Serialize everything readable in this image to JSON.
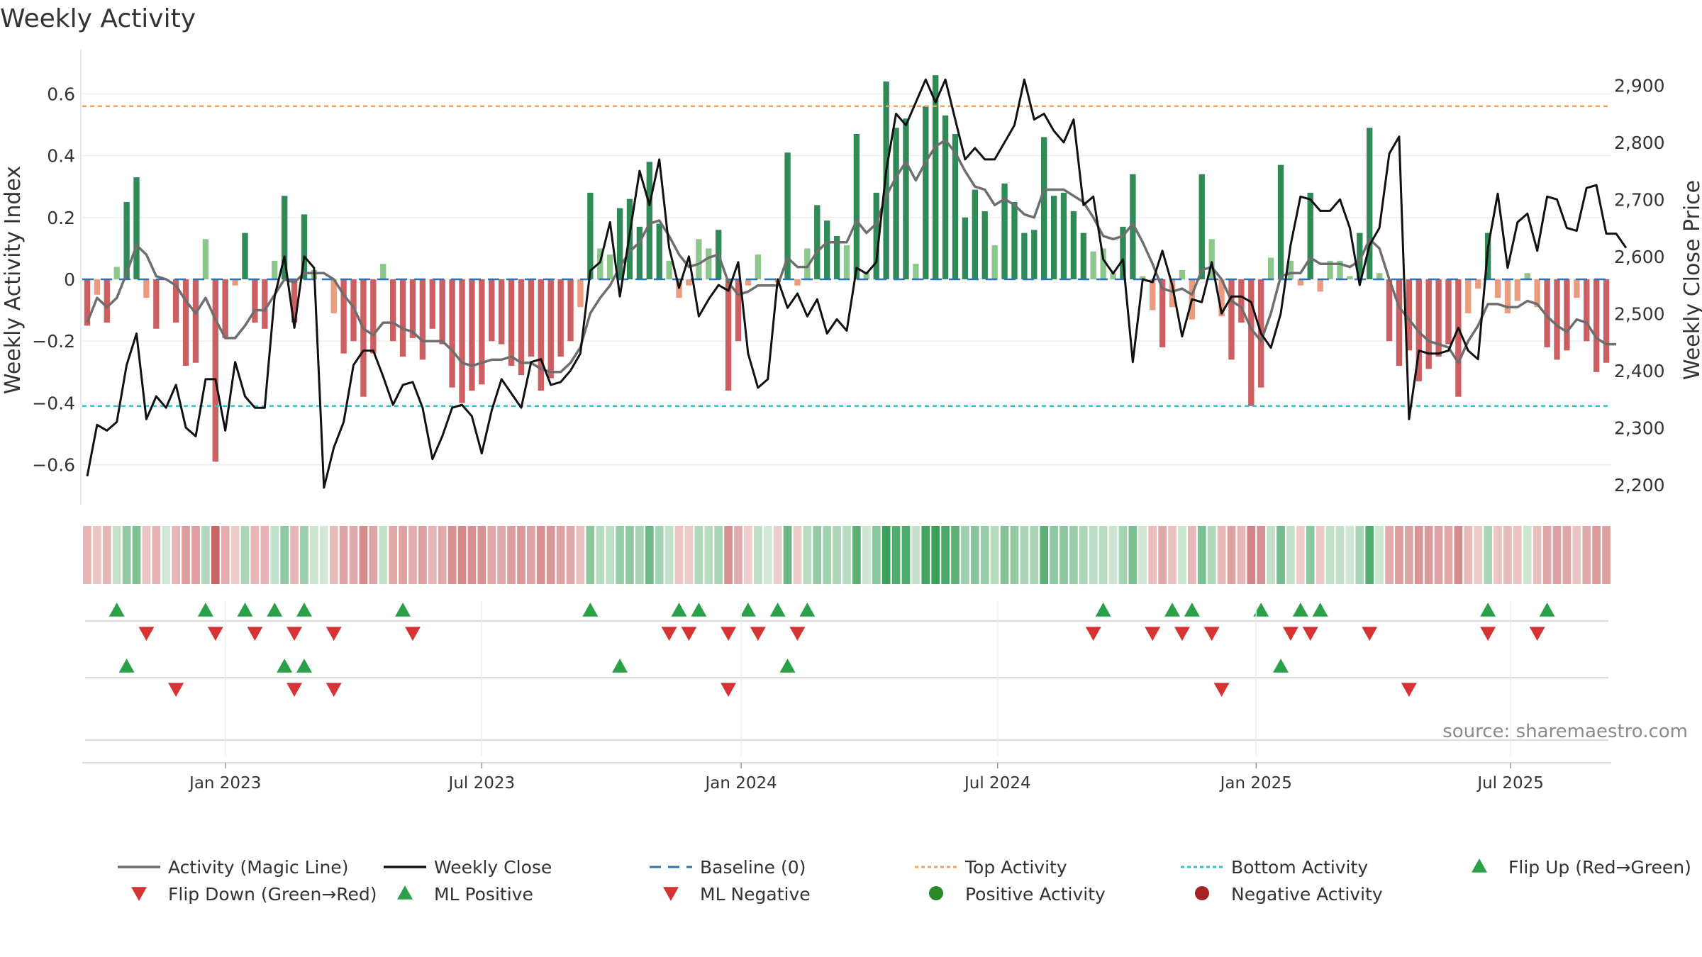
{
  "title": "Weekly Activity",
  "source": "source: sharemaestro.com",
  "colors": {
    "pos_dark": "#2f8a57",
    "pos_light": "#8cc78c",
    "neg_dark": "#cc5f61",
    "neg_light": "#eb9c7f",
    "magic": "#6e6e6e",
    "close": "#111111",
    "baseline": "#2a74b8",
    "top": "#f0a35a",
    "bottom": "#29c6d2",
    "up": "#2aa149",
    "down": "#d63434"
  },
  "chart_data": {
    "type": "bar",
    "title": "Weekly Activity",
    "ylabel": "Weekly Activity Index",
    "y2label": "Weekly Close Price",
    "ylim": [
      -0.72,
      0.72
    ],
    "y2lim": [
      2170,
      2950
    ],
    "yticks": [
      {
        "v": 0.6,
        "label": "0.6"
      },
      {
        "v": 0.4,
        "label": "0.4"
      },
      {
        "v": 0.2,
        "label": "0.2"
      },
      {
        "v": 0,
        "label": "0"
      },
      {
        "v": -0.2,
        "label": "−0.2"
      },
      {
        "v": -0.4,
        "label": "−0.4"
      },
      {
        "v": -0.6,
        "label": "−0.6"
      }
    ],
    "y2ticks": [
      {
        "v": 2900,
        "label": "2,900"
      },
      {
        "v": 2800,
        "label": "2,800"
      },
      {
        "v": 2700,
        "label": "2,700"
      },
      {
        "v": 2600,
        "label": "2,600"
      },
      {
        "v": 2500,
        "label": "2,500"
      },
      {
        "v": 2400,
        "label": "2,400"
      },
      {
        "v": 2300,
        "label": "2,300"
      },
      {
        "v": 2200,
        "label": "2,200"
      }
    ],
    "xticks": [
      {
        "week": 14.5,
        "label": "Jan 2023"
      },
      {
        "week": 40.5,
        "label": "Jul 2023"
      },
      {
        "week": 66.8,
        "label": "Jan 2024"
      },
      {
        "week": 92.8,
        "label": "Jul 2024"
      },
      {
        "week": 119,
        "label": "Jan 2025"
      },
      {
        "week": 144.8,
        "label": "Jul 2025"
      }
    ],
    "top_activity": 0.56,
    "bottom_activity": -0.41,
    "activity": [
      -0.15,
      -0.05,
      -0.14,
      0.04,
      0.25,
      0.33,
      -0.06,
      -0.16,
      0.0,
      -0.14,
      -0.28,
      -0.27,
      0.13,
      -0.59,
      -0.19,
      -0.02,
      0.15,
      -0.14,
      -0.16,
      0.06,
      0.27,
      -0.14,
      0.21,
      0.03,
      0.0,
      -0.11,
      -0.24,
      -0.2,
      -0.38,
      -0.24,
      0.05,
      -0.2,
      -0.25,
      -0.19,
      -0.26,
      -0.16,
      -0.21,
      -0.35,
      -0.4,
      -0.36,
      -0.34,
      -0.2,
      -0.21,
      -0.28,
      -0.31,
      -0.25,
      -0.36,
      -0.32,
      -0.25,
      -0.2,
      -0.09,
      0.28,
      0.1,
      0.08,
      0.23,
      0.26,
      0.17,
      0.38,
      0.18,
      0.06,
      -0.06,
      -0.02,
      0.13,
      0.1,
      0.16,
      -0.36,
      -0.2,
      -0.02,
      0.08,
      0.0,
      -0.01,
      0.41,
      -0.02,
      0.1,
      0.24,
      0.19,
      0.14,
      0.11,
      0.47,
      0.02,
      0.28,
      0.64,
      0.49,
      0.52,
      0.05,
      0.56,
      0.66,
      0.53,
      0.47,
      0.2,
      0.29,
      0.22,
      0.11,
      0.31,
      0.25,
      0.15,
      0.16,
      0.46,
      0.27,
      0.28,
      0.22,
      0.15,
      0.09,
      0.1,
      0.02,
      0.17,
      0.34,
      0.01,
      -0.1,
      -0.22,
      -0.09,
      0.03,
      -0.13,
      0.34,
      0.13,
      -0.12,
      -0.26,
      -0.14,
      -0.41,
      -0.35,
      0.07,
      0.37,
      0.06,
      -0.02,
      0.28,
      -0.04,
      0.06,
      0.06,
      0.01,
      0.15,
      0.49,
      0.02,
      -0.2,
      -0.28,
      -0.23,
      -0.33,
      -0.29,
      -0.25,
      -0.21,
      -0.38,
      -0.11,
      -0.03,
      0.15,
      -0.06,
      -0.11,
      -0.07,
      0.02,
      -0.09,
      -0.22,
      -0.26,
      -0.23,
      -0.06,
      -0.2,
      -0.3,
      -0.27
    ],
    "magic_line": [
      -0.14,
      -0.06,
      -0.09,
      -0.06,
      0.02,
      0.11,
      0.08,
      0.01,
      0.0,
      -0.02,
      -0.07,
      -0.11,
      -0.06,
      -0.13,
      -0.19,
      -0.19,
      -0.15,
      -0.1,
      -0.1,
      -0.05,
      0.0,
      -0.01,
      0.02,
      0.02,
      0.02,
      0.0,
      -0.05,
      -0.09,
      -0.16,
      -0.18,
      -0.14,
      -0.14,
      -0.16,
      -0.17,
      -0.2,
      -0.2,
      -0.2,
      -0.23,
      -0.27,
      -0.28,
      -0.27,
      -0.26,
      -0.26,
      -0.25,
      -0.27,
      -0.27,
      -0.29,
      -0.3,
      -0.3,
      -0.27,
      -0.22,
      -0.11,
      -0.06,
      -0.02,
      0.04,
      0.09,
      0.12,
      0.18,
      0.19,
      0.14,
      0.08,
      0.04,
      0.05,
      0.07,
      0.08,
      -0.01,
      -0.05,
      -0.04,
      -0.02,
      -0.02,
      -0.02,
      0.07,
      0.04,
      0.04,
      0.09,
      0.12,
      0.12,
      0.12,
      0.19,
      0.15,
      0.18,
      0.27,
      0.33,
      0.38,
      0.32,
      0.38,
      0.43,
      0.45,
      0.41,
      0.35,
      0.3,
      0.29,
      0.24,
      0.26,
      0.24,
      0.21,
      0.2,
      0.29,
      0.29,
      0.29,
      0.27,
      0.25,
      0.2,
      0.14,
      0.13,
      0.14,
      0.18,
      0.12,
      0.05,
      -0.03,
      -0.04,
      -0.03,
      -0.05,
      0.03,
      0.04,
      0.0,
      -0.07,
      -0.09,
      -0.16,
      -0.2,
      -0.11,
      0.01,
      0.02,
      0.02,
      0.07,
      0.05,
      0.05,
      0.05,
      0.04,
      0.06,
      0.13,
      0.1,
      0.0,
      -0.09,
      -0.13,
      -0.17,
      -0.2,
      -0.21,
      -0.22,
      -0.27,
      -0.2,
      -0.15,
      -0.08,
      -0.08,
      -0.09,
      -0.09,
      -0.07,
      -0.08,
      -0.12,
      -0.15,
      -0.17,
      -0.13,
      -0.14,
      -0.19,
      -0.21,
      -0.21
    ],
    "close": [
      2215,
      2305,
      2295,
      2310,
      2410,
      2465,
      2315,
      2355,
      2335,
      2375,
      2300,
      2285,
      2385,
      2385,
      2295,
      2415,
      2355,
      2335,
      2335,
      2530,
      2600,
      2475,
      2600,
      2580,
      2195,
      2265,
      2310,
      2410,
      2435,
      2435,
      2390,
      2340,
      2375,
      2380,
      2335,
      2245,
      2285,
      2335,
      2340,
      2320,
      2255,
      2330,
      2385,
      2360,
      2335,
      2415,
      2420,
      2375,
      2380,
      2400,
      2430,
      2575,
      2590,
      2660,
      2530,
      2640,
      2750,
      2690,
      2770,
      2615,
      2545,
      2600,
      2495,
      2525,
      2550,
      2540,
      2590,
      2430,
      2370,
      2385,
      2560,
      2510,
      2535,
      2495,
      2525,
      2465,
      2490,
      2470,
      2580,
      2570,
      2590,
      2750,
      2850,
      2830,
      2870,
      2910,
      2870,
      2910,
      2840,
      2770,
      2790,
      2770,
      2770,
      2800,
      2830,
      2910,
      2840,
      2850,
      2820,
      2800,
      2840,
      2690,
      2705,
      2595,
      2570,
      2595,
      2415,
      2560,
      2555,
      2610,
      2550,
      2460,
      2525,
      2520,
      2590,
      2500,
      2530,
      2530,
      2520,
      2465,
      2440,
      2500,
      2620,
      2705,
      2700,
      2680,
      2680,
      2700,
      2650,
      2550,
      2620,
      2650,
      2780,
      2810,
      2315,
      2435,
      2430,
      2430,
      2435,
      2475,
      2435,
      2420,
      2615,
      2710,
      2580,
      2660,
      2675,
      2610,
      2705,
      2700,
      2650,
      2645,
      2720,
      2725,
      2640,
      2640,
      2615
    ],
    "flip_up": [
      3,
      12,
      16,
      19,
      22,
      32,
      51,
      60,
      62,
      67,
      70,
      73,
      103,
      110,
      112,
      119,
      123,
      125,
      142,
      148
    ],
    "flip_down": [
      6,
      13,
      17,
      21,
      25,
      33,
      59,
      61,
      65,
      68,
      72,
      102,
      108,
      111,
      114,
      122,
      124,
      130,
      142,
      147
    ],
    "ml_positive": [
      4,
      20,
      22,
      54,
      71,
      121
    ],
    "ml_negative": [
      9,
      21,
      25,
      65,
      115,
      134
    ]
  },
  "legend": [
    {
      "kind": "line",
      "color": "#6e6e6e",
      "label": "Activity (Magic Line)"
    },
    {
      "kind": "line",
      "color": "#111111",
      "label": "Weekly Close"
    },
    {
      "kind": "dash",
      "color": "#2a74b8",
      "label": "Baseline (0)"
    },
    {
      "kind": "dot",
      "color": "#f0a35a",
      "label": "Top Activity"
    },
    {
      "kind": "dot",
      "color": "#29c6d2",
      "label": "Bottom Activity"
    },
    {
      "kind": "up",
      "color": "#2aa149",
      "label": "Flip Up (Red→Green)"
    },
    {
      "kind": "down",
      "color": "#d63434",
      "label": "Flip Down (Green→Red)"
    },
    {
      "kind": "up",
      "color": "#2aa149",
      "label": "ML Positive"
    },
    {
      "kind": "down",
      "color": "#d63434",
      "label": "ML Negative"
    },
    {
      "kind": "circle",
      "color": "#2a8a2a",
      "label": "Positive Activity"
    },
    {
      "kind": "circle",
      "color": "#a52222",
      "label": "Negative Activity"
    }
  ]
}
